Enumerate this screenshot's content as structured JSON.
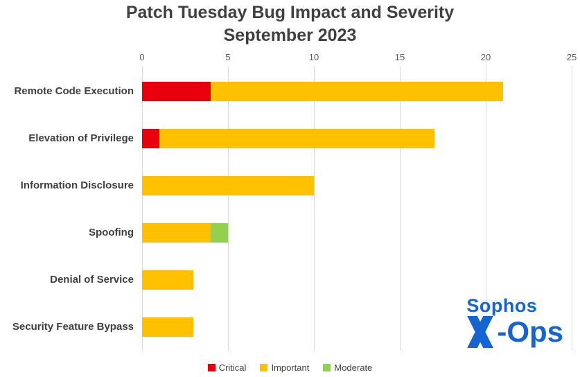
{
  "title": {
    "line1": "Patch Tuesday Bug Impact and Severity",
    "line2": "September 2023"
  },
  "chart_data": {
    "type": "bar",
    "orientation": "horizontal",
    "stacked": true,
    "title": "Patch Tuesday Bug Impact and Severity September 2023",
    "categories": [
      "Remote Code Execution",
      "Elevation of Privilege",
      "Information Disclosure",
      "Spoofing",
      "Denial of Service",
      "Security Feature Bypass"
    ],
    "series": [
      {
        "name": "Critical",
        "color": "#e8000d",
        "values": [
          4,
          1,
          0,
          0,
          0,
          0
        ]
      },
      {
        "name": "Important",
        "color": "#ffc000",
        "values": [
          17,
          16,
          10,
          4,
          3,
          3
        ]
      },
      {
        "name": "Moderate",
        "color": "#92d050",
        "values": [
          0,
          0,
          0,
          1,
          0,
          0
        ]
      }
    ],
    "xlim": [
      0,
      25
    ],
    "xticks": [
      0,
      5,
      10,
      15,
      20,
      25
    ],
    "grid": true,
    "legend_position": "bottom"
  },
  "branding": {
    "name": "Sophos",
    "suffix": "-Ops",
    "color": "#1464d2"
  },
  "colors": {
    "grid": "#d9d9d9",
    "title": "#404040",
    "tick": "#595959",
    "category_label": "#3f3f3f",
    "legend_text": "#404040"
  }
}
